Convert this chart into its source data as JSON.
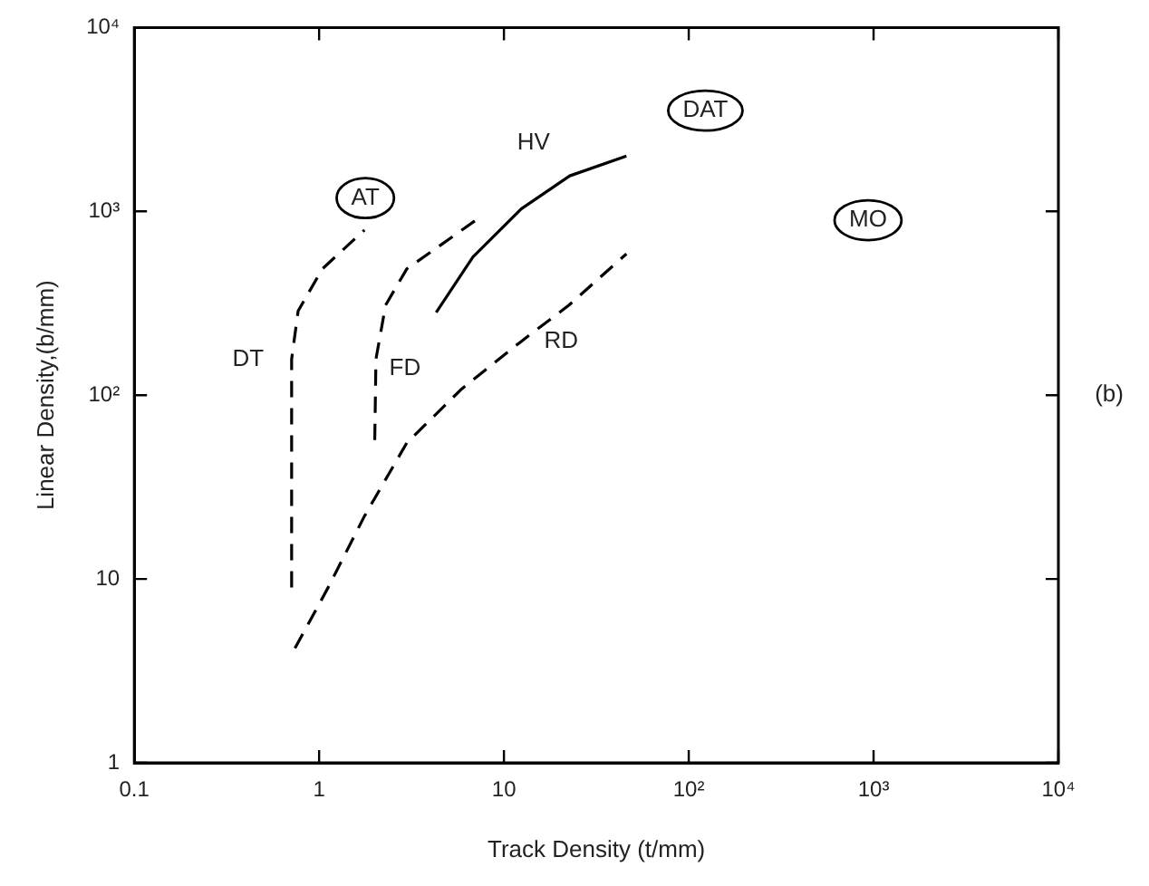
{
  "chart_data": {
    "type": "line",
    "xlabel": "Track Density (t/mm)",
    "ylabel": "Linear Density,(b/mm)",
    "log": "xy",
    "grid": false,
    "legend": false,
    "marker": "none",
    "xlim": [
      0.1,
      10000
    ],
    "ylim": [
      1,
      10000
    ],
    "xticks": [
      0.1,
      1,
      10,
      {
        "value": 100,
        "label": "10²"
      },
      {
        "value": 1000,
        "label": "10³"
      },
      {
        "value": 10000,
        "label": "10⁴"
      }
    ],
    "yticks": [
      1,
      10,
      {
        "value": 100,
        "label": "10²"
      },
      {
        "value": 1000,
        "label": "10³"
      },
      {
        "value": 10000,
        "label": "10⁴"
      }
    ],
    "series": [
      {
        "name": "DT",
        "color": "#000000",
        "line_style": "dashed",
        "x": [
          0.71,
          0.71,
          0.77,
          1.04,
          1.76
        ],
        "values": [
          9,
          157,
          287,
          486,
          792
        ]
      },
      {
        "name": "FD",
        "color": "#000000",
        "line_style": "dashed",
        "x": [
          2.0,
          2.03,
          2.29,
          2.98,
          7.1
        ],
        "values": [
          57,
          157,
          309,
          486,
          900
        ]
      },
      {
        "name": "HV",
        "color": "#000000",
        "line_style": "solid",
        "x": [
          4.3,
          6.8,
          12.4,
          22.7,
          46
        ],
        "values": [
          282,
          565,
          1030,
          1560,
          2000
        ]
      },
      {
        "name": "RD",
        "color": "#000000",
        "line_style": "dashed",
        "x": [
          0.74,
          1.12,
          1.76,
          2.98,
          5.9,
          12.4,
          22.5,
          46
        ],
        "values": [
          4.2,
          9,
          22,
          55,
          108,
          196,
          309,
          587
        ]
      }
    ],
    "annotations": [
      "AT",
      "DAT",
      "MO",
      "(b)"
    ]
  }
}
